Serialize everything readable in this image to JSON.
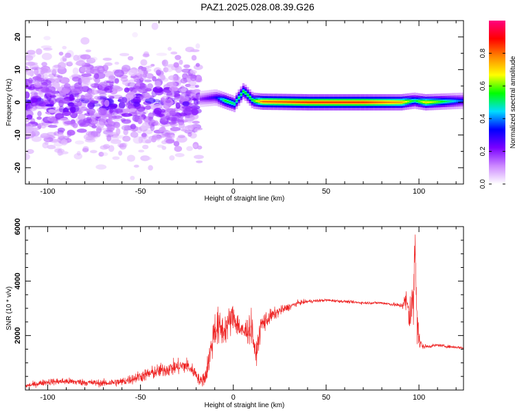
{
  "title": "PAZ1.2025.028.08.39.G26",
  "chart_data": [
    {
      "type": "heatmap",
      "xlabel": "Height of straight line (km)",
      "ylabel": "Frequency (Hz)",
      "xlim": [
        -112,
        124
      ],
      "ylim": [
        -25,
        25
      ],
      "xticks": [
        -100,
        -50,
        0,
        50,
        100
      ],
      "yticks": [
        -20,
        -10,
        0,
        10,
        20
      ],
      "grid": false,
      "colorbar": {
        "label": "Normalized spectral amplitude",
        "range": [
          0,
          1
        ],
        "ticks": [
          0.0,
          0.2,
          0.4,
          0.6,
          0.8
        ],
        "colormap": [
          "#ffffff",
          "#cc88ff",
          "#7a00ff",
          "#0000ff",
          "#00ddff",
          "#00ff00",
          "#ffff00",
          "#ff8800",
          "#ff0000",
          "#ff0080"
        ]
      },
      "noise_region": {
        "x_range": [
          -112,
          -18
        ],
        "freq_spread": 24,
        "typical_amplitude": 0.1
      },
      "ridge": [
        {
          "x": -18,
          "f": 1.0,
          "amp": 0.2
        },
        {
          "x": -10,
          "f": 1.5,
          "amp": 0.3
        },
        {
          "x": -5,
          "f": 0.5,
          "amp": 0.55
        },
        {
          "x": 0,
          "f": -0.5,
          "amp": 0.5
        },
        {
          "x": 5,
          "f": 3.5,
          "amp": 0.55
        },
        {
          "x": 10,
          "f": 0.5,
          "amp": 0.55
        },
        {
          "x": 15,
          "f": 0.2,
          "amp": 0.8
        },
        {
          "x": 40,
          "f": 0.0,
          "amp": 0.85
        },
        {
          "x": 70,
          "f": 0.0,
          "amp": 0.85
        },
        {
          "x": 90,
          "f": 0.0,
          "amp": 0.75
        },
        {
          "x": 97,
          "f": 0.5,
          "amp": 0.5
        },
        {
          "x": 103,
          "f": 0.0,
          "amp": 0.7
        },
        {
          "x": 124,
          "f": 0.5,
          "amp": 0.35
        }
      ]
    },
    {
      "type": "line",
      "xlabel": "Height of straight line (km)",
      "ylabel": "SNR (10 * v/v)",
      "xlim": [
        -112,
        124
      ],
      "ylim": [
        0,
        6000
      ],
      "xticks": [
        -100,
        -50,
        0,
        50,
        100
      ],
      "yticks": [
        2000,
        4000,
        6000
      ],
      "grid": false,
      "series": [
        {
          "color": "#ee2222",
          "x": [
            -112,
            -100,
            -90,
            -80,
            -70,
            -60,
            -50,
            -40,
            -30,
            -25,
            -20,
            -18,
            -15,
            -12,
            -10,
            -5,
            0,
            5,
            10,
            12,
            15,
            20,
            25,
            30,
            35,
            40,
            50,
            60,
            70,
            80,
            85,
            90,
            93,
            95,
            97,
            98,
            99,
            100,
            102,
            105,
            110,
            115,
            124
          ],
          "y": [
            150,
            300,
            320,
            280,
            250,
            300,
            500,
            700,
            850,
            900,
            600,
            300,
            500,
            1500,
            2300,
            2200,
            2700,
            2100,
            2300,
            1200,
            2400,
            2700,
            2900,
            3050,
            3200,
            3250,
            3300,
            3250,
            3200,
            3200,
            3150,
            3100,
            3250,
            2800,
            3200,
            5500,
            3000,
            1800,
            1600,
            1600,
            1650,
            1600,
            1550
          ],
          "noise": [
            100,
            140,
            150,
            140,
            150,
            180,
            250,
            300,
            330,
            330,
            250,
            200,
            400,
            700,
            900,
            700,
            600,
            500,
            700,
            400,
            500,
            300,
            200,
            150,
            100,
            80,
            60,
            60,
            60,
            60,
            70,
            100,
            500,
            1000,
            1200,
            1500,
            1800,
            400,
            100,
            70,
            60,
            60,
            60
          ]
        }
      ]
    }
  ]
}
